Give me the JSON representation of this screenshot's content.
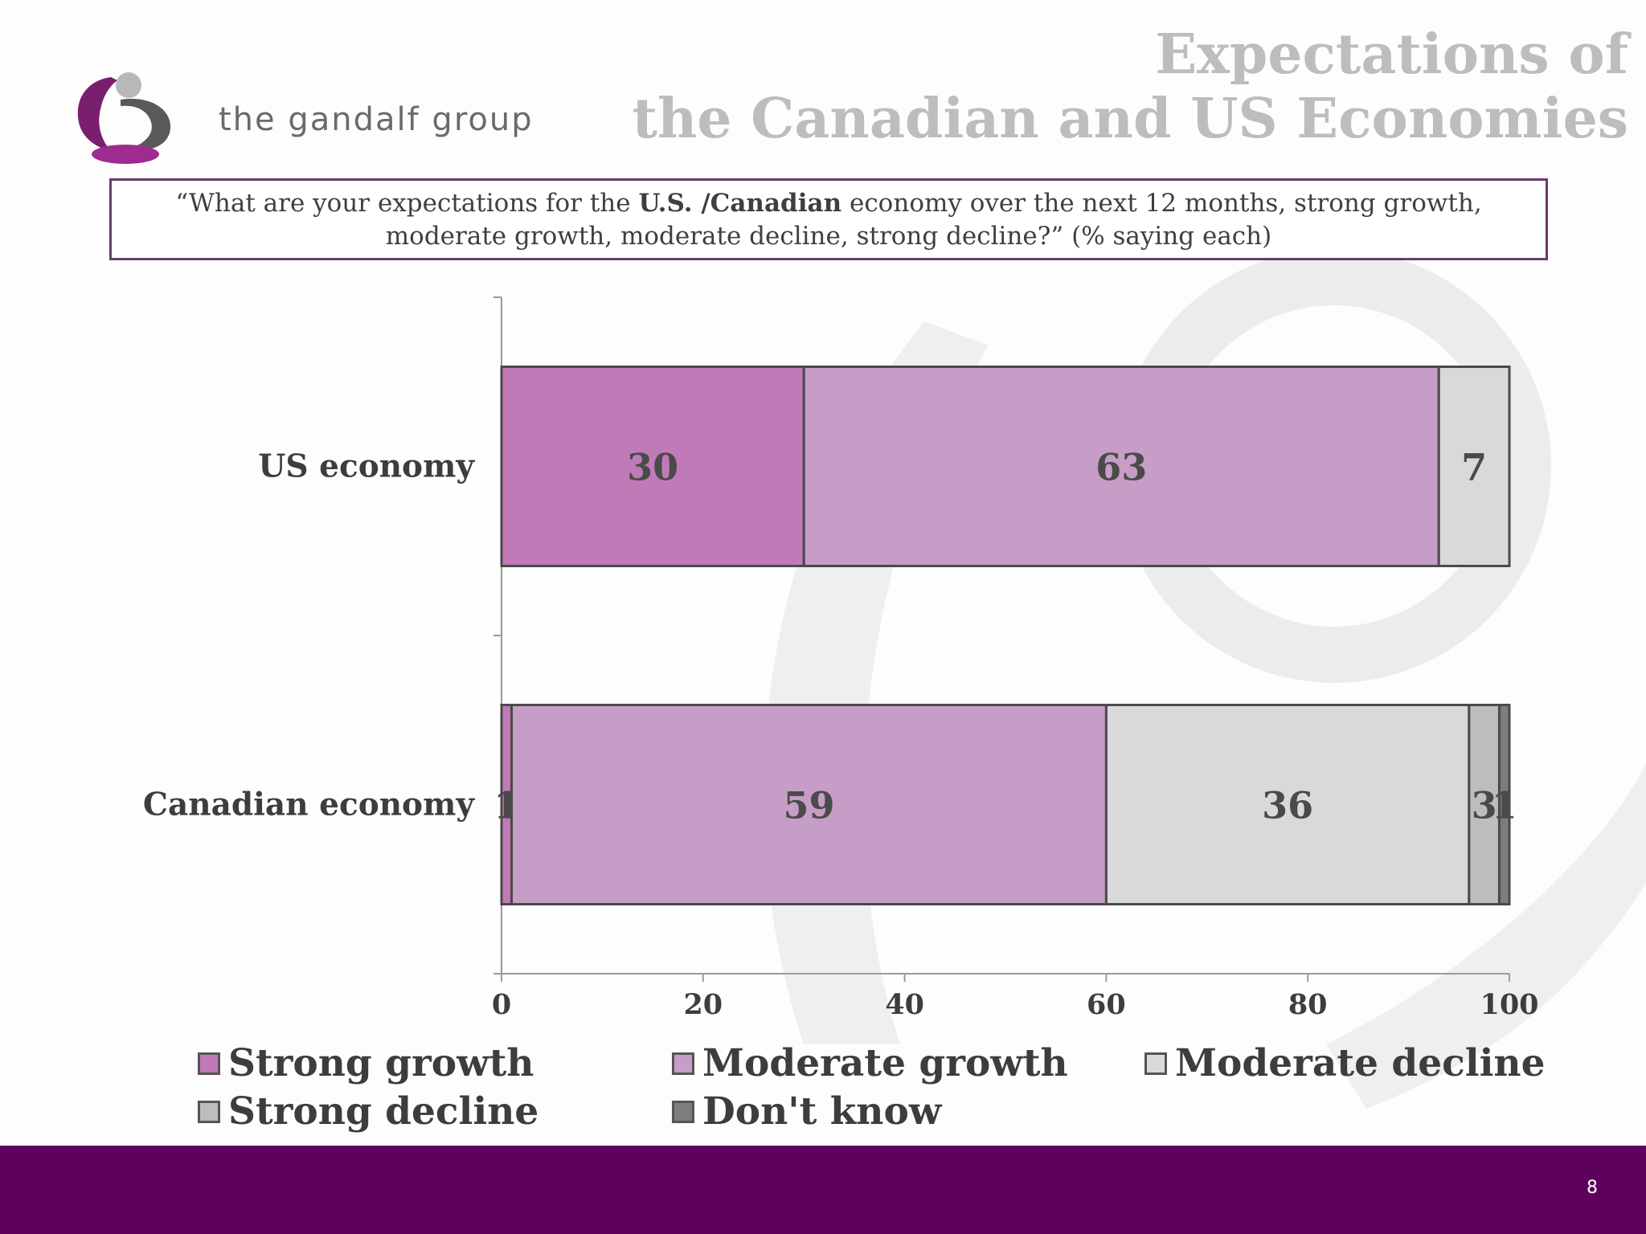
{
  "logo": {
    "text": "the gandalf group",
    "mark_icon": "gandalf-g-logo-icon"
  },
  "title": {
    "line1": "Expectations of",
    "line2": "the Canadian and US Economies"
  },
  "question": {
    "part1": "“What are your expectations for the ",
    "bold": "U.S. /Canadian",
    "part2": " economy over the next 12 months, strong growth, moderate growth, moderate decline, strong decline?” (% saying each)"
  },
  "chart_data": {
    "type": "bar",
    "orientation": "horizontal",
    "stacked": true,
    "categories": [
      "US economy",
      "Canadian economy"
    ],
    "series": [
      {
        "name": "Strong growth",
        "values": [
          30,
          1
        ],
        "color": "#c17ab8",
        "labels": [
          "30",
          "1"
        ]
      },
      {
        "name": "Moderate growth",
        "values": [
          63,
          59
        ],
        "color": "#c69dc6",
        "labels": [
          "63",
          "59"
        ]
      },
      {
        "name": "Moderate decline",
        "values": [
          7,
          36
        ],
        "color": "#d9d8da",
        "labels": [
          "7",
          "36"
        ]
      },
      {
        "name": "Strong decline",
        "values": [
          0,
          3
        ],
        "color": "#bdbcbe",
        "labels": [
          "",
          "3"
        ]
      },
      {
        "name": "Don't know",
        "values": [
          0,
          1
        ],
        "color": "#7d7c7e",
        "labels": [
          "",
          "1"
        ]
      }
    ],
    "xlim": [
      0,
      100
    ],
    "xticks": [
      "0",
      "20",
      "40",
      "60",
      "80",
      "100"
    ],
    "grid": false,
    "legend_position": "bottom"
  },
  "footer": {
    "page_number": "8",
    "color": "#5e005e"
  }
}
